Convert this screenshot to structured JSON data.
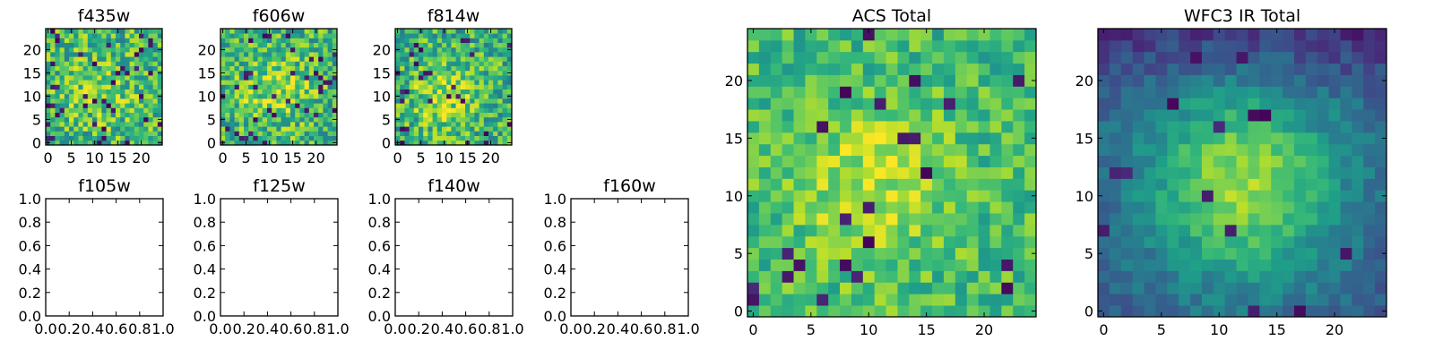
{
  "chart_data": [
    {
      "id": "f435w",
      "type": "heatmap",
      "title": "f435w",
      "colormap": "viridis",
      "grid_size": 25,
      "xlim": [
        -0.5,
        24.5
      ],
      "ylim": [
        -0.5,
        24.5
      ],
      "xticks": [
        0,
        5,
        10,
        15,
        20
      ],
      "yticks": [
        0,
        5,
        10,
        15,
        20
      ],
      "pattern": {
        "seed": 11,
        "mean": 0.66,
        "spread": 0.26,
        "dark_rate": 0.06,
        "center": [
          11,
          11
        ],
        "peak": 0.1,
        "width": 6
      }
    },
    {
      "id": "f606w",
      "type": "heatmap",
      "title": "f606w",
      "colormap": "viridis",
      "grid_size": 25,
      "xlim": [
        -0.5,
        24.5
      ],
      "ylim": [
        -0.5,
        24.5
      ],
      "xticks": [
        0,
        5,
        10,
        15,
        20
      ],
      "yticks": [
        0,
        5,
        10,
        15,
        20
      ],
      "pattern": {
        "seed": 23,
        "mean": 0.66,
        "spread": 0.25,
        "dark_rate": 0.05,
        "center": [
          11,
          11
        ],
        "peak": 0.2,
        "width": 5
      }
    },
    {
      "id": "f814w",
      "type": "heatmap",
      "title": "f814w",
      "colormap": "viridis",
      "grid_size": 25,
      "xlim": [
        -0.5,
        24.5
      ],
      "ylim": [
        -0.5,
        24.5
      ],
      "xticks": [
        0,
        5,
        10,
        15,
        20
      ],
      "yticks": [
        0,
        5,
        10,
        15,
        20
      ],
      "pattern": {
        "seed": 37,
        "mean": 0.64,
        "spread": 0.25,
        "dark_rate": 0.05,
        "center": [
          10,
          10
        ],
        "peak": 0.22,
        "width": 5
      }
    },
    {
      "id": "f105w",
      "type": "empty",
      "title": "f105w",
      "xlim": [
        0,
        1
      ],
      "ylim": [
        0,
        1
      ],
      "xticks": [
        "0.0",
        "0.2",
        "0.4",
        "0.6",
        "0.8",
        "1.0"
      ],
      "yticks": [
        "0.0",
        "0.2",
        "0.4",
        "0.6",
        "0.8",
        "1.0"
      ]
    },
    {
      "id": "f125w",
      "type": "empty",
      "title": "f125w",
      "xlim": [
        0,
        1
      ],
      "ylim": [
        0,
        1
      ],
      "xticks": [
        "0.0",
        "0.2",
        "0.4",
        "0.6",
        "0.8",
        "1.0"
      ],
      "yticks": [
        "0.0",
        "0.2",
        "0.4",
        "0.6",
        "0.8",
        "1.0"
      ]
    },
    {
      "id": "f140w",
      "type": "empty",
      "title": "f140w",
      "xlim": [
        0,
        1
      ],
      "ylim": [
        0,
        1
      ],
      "xticks": [
        "0.0",
        "0.2",
        "0.4",
        "0.6",
        "0.8",
        "1.0"
      ],
      "yticks": [
        "0.0",
        "0.2",
        "0.4",
        "0.6",
        "0.8",
        "1.0"
      ]
    },
    {
      "id": "f160w",
      "type": "empty",
      "title": "f160w",
      "xlim": [
        0,
        1
      ],
      "ylim": [
        0,
        1
      ],
      "xticks": [
        "0.0",
        "0.2",
        "0.4",
        "0.6",
        "0.8",
        "1.0"
      ],
      "yticks": [
        "0.0",
        "0.2",
        "0.4",
        "0.6",
        "0.8",
        "1.0"
      ]
    },
    {
      "id": "acs-total",
      "type": "heatmap",
      "title": "ACS Total",
      "colormap": "viridis",
      "grid_size": 25,
      "xlim": [
        -0.5,
        24.5
      ],
      "ylim": [
        -0.5,
        24.5
      ],
      "xticks": [
        0,
        5,
        10,
        15,
        20
      ],
      "yticks": [
        0,
        5,
        10,
        15,
        20
      ],
      "pattern": {
        "seed": 51,
        "mean": 0.68,
        "spread": 0.17,
        "dark_rate": 0.035,
        "center": [
          10,
          11
        ],
        "peak": 0.22,
        "width": 5
      }
    },
    {
      "id": "wfc3-ir-total",
      "type": "heatmap",
      "title": "WFC3 IR Total",
      "colormap": "viridis",
      "grid_size": 25,
      "xlim": [
        -0.5,
        24.5
      ],
      "ylim": [
        -0.5,
        24.5
      ],
      "xticks": [
        0,
        5,
        10,
        15,
        20
      ],
      "yticks": [
        0,
        5,
        10,
        15,
        20
      ],
      "pattern": {
        "seed": 67,
        "mean": 0.3,
        "spread": 0.09,
        "dark_rate": 0.02,
        "center": [
          12,
          11
        ],
        "peak": 0.55,
        "width": 6,
        "top_dim": 0.16
      }
    }
  ]
}
